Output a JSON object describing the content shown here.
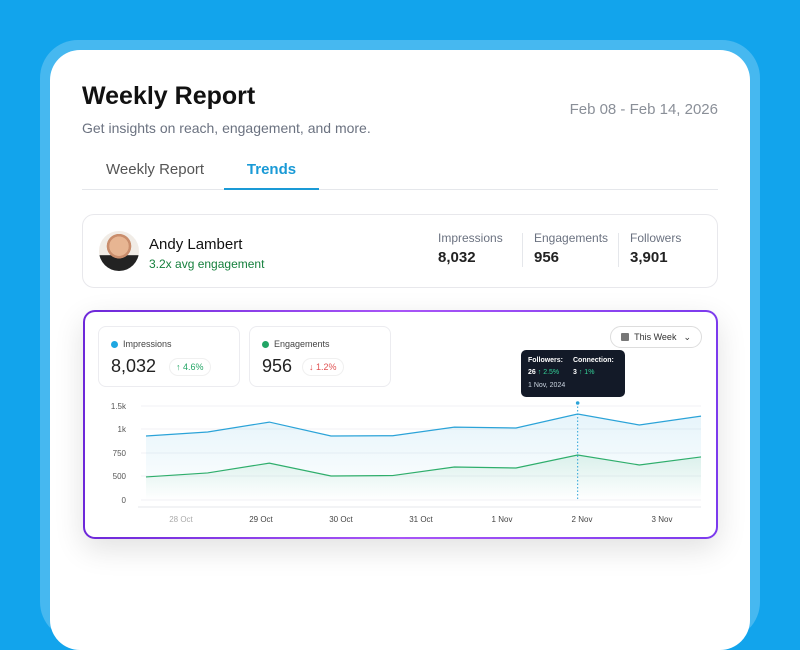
{
  "header": {
    "title": "Weekly Report",
    "subtitle": "Get insights on reach, engagement, and more.",
    "date_range": "Feb 08 - Feb 14, 2026"
  },
  "tabs": [
    {
      "label": "Weekly Report",
      "active": false
    },
    {
      "label": "Trends",
      "active": true
    }
  ],
  "profile": {
    "name": "Andy Lambert",
    "engagement": "3.2x avg engagement",
    "stats": [
      {
        "label": "Impressions",
        "value": "8,032"
      },
      {
        "label": "Engagements",
        "value": "956"
      },
      {
        "label": "Followers",
        "value": "3,901"
      }
    ]
  },
  "metrics": [
    {
      "label": "Impressions",
      "value": "8,032",
      "change": "↑ 4.6%",
      "color": "#1ea7e1",
      "trend": "up"
    },
    {
      "label": "Engagements",
      "value": "956",
      "change": "↓ 1.2%",
      "color": "#22a565",
      "trend": "down"
    }
  ],
  "period_select": {
    "value": "This Week",
    "icon": "calendar-icon"
  },
  "tooltip": {
    "followers_label": "Followers:",
    "followers_value": "26",
    "followers_change": "↑ 2.5%",
    "connection_label": "Connection:",
    "connection_value": "3",
    "connection_change": "↑ 1%",
    "date": "1 Nov, 2024"
  },
  "chart_data": {
    "type": "area",
    "y_ticks": [
      "1.5k",
      "1k",
      "750",
      "500",
      "0"
    ],
    "x_labels": [
      "28 Oct",
      "29 Oct",
      "30 Oct",
      "31 Oct",
      "1 Nov",
      "2 Nov",
      "3 Nov"
    ],
    "series": [
      {
        "values": [
          927,
          969,
          1150,
          927,
          930,
          1040,
          1022,
          1326,
          1087,
          1280
        ],
        "color": "#2ba3d8"
      },
      {
        "values": [
          480,
          533,
          640,
          500,
          505,
          598,
          587,
          728,
          620,
          707
        ],
        "color": "#2fae6c"
      }
    ],
    "highlight_index": 7,
    "grid": true
  }
}
